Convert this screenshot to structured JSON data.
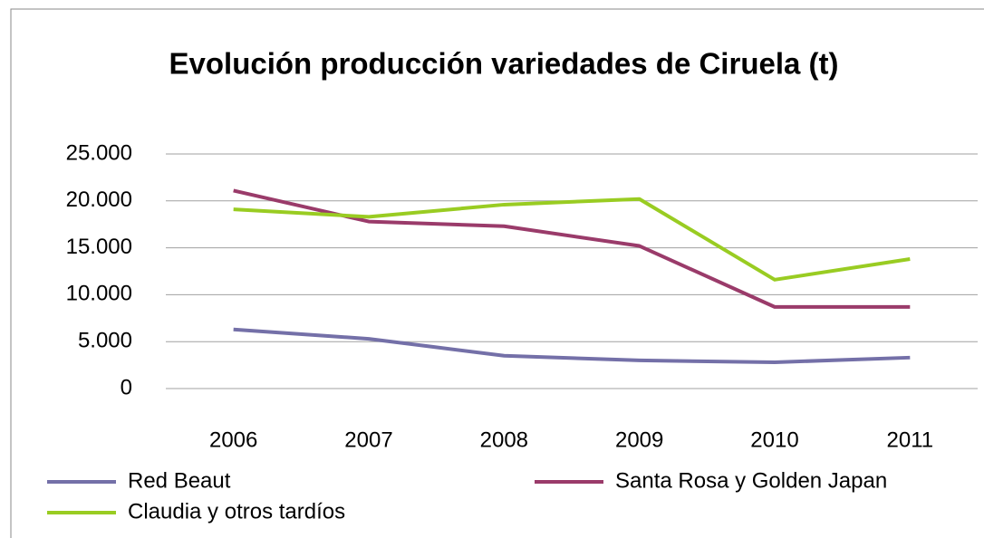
{
  "chart_data": {
    "type": "line",
    "title": "Evolución producción variedades de Ciruela (t)",
    "categories": [
      "2006",
      "2007",
      "2008",
      "2009",
      "2010",
      "2011"
    ],
    "series": [
      {
        "name": "Red Beaut",
        "color": "#7470a8",
        "values": [
          6300,
          5300,
          3500,
          3000,
          2800,
          3300
        ]
      },
      {
        "name": "Santa Rosa y Golden Japan",
        "color": "#9a3b6a",
        "values": [
          21100,
          17800,
          17300,
          15200,
          8700,
          8700
        ]
      },
      {
        "name": "Claudia y otros tardíos",
        "color": "#99cc22",
        "values": [
          19100,
          18300,
          19600,
          20200,
          11600,
          13800
        ]
      }
    ],
    "ylim": [
      0,
      25000
    ],
    "yticks": [
      0,
      {
        "value": 5000,
        "label": "5.000"
      },
      {
        "value": 10000,
        "label": "10.000"
      },
      {
        "value": 15000,
        "label": "15.000"
      },
      {
        "value": 20000,
        "label": "20.000"
      },
      {
        "value": 25000,
        "label": "25.000"
      }
    ],
    "grid": true,
    "legend": "bottom"
  }
}
